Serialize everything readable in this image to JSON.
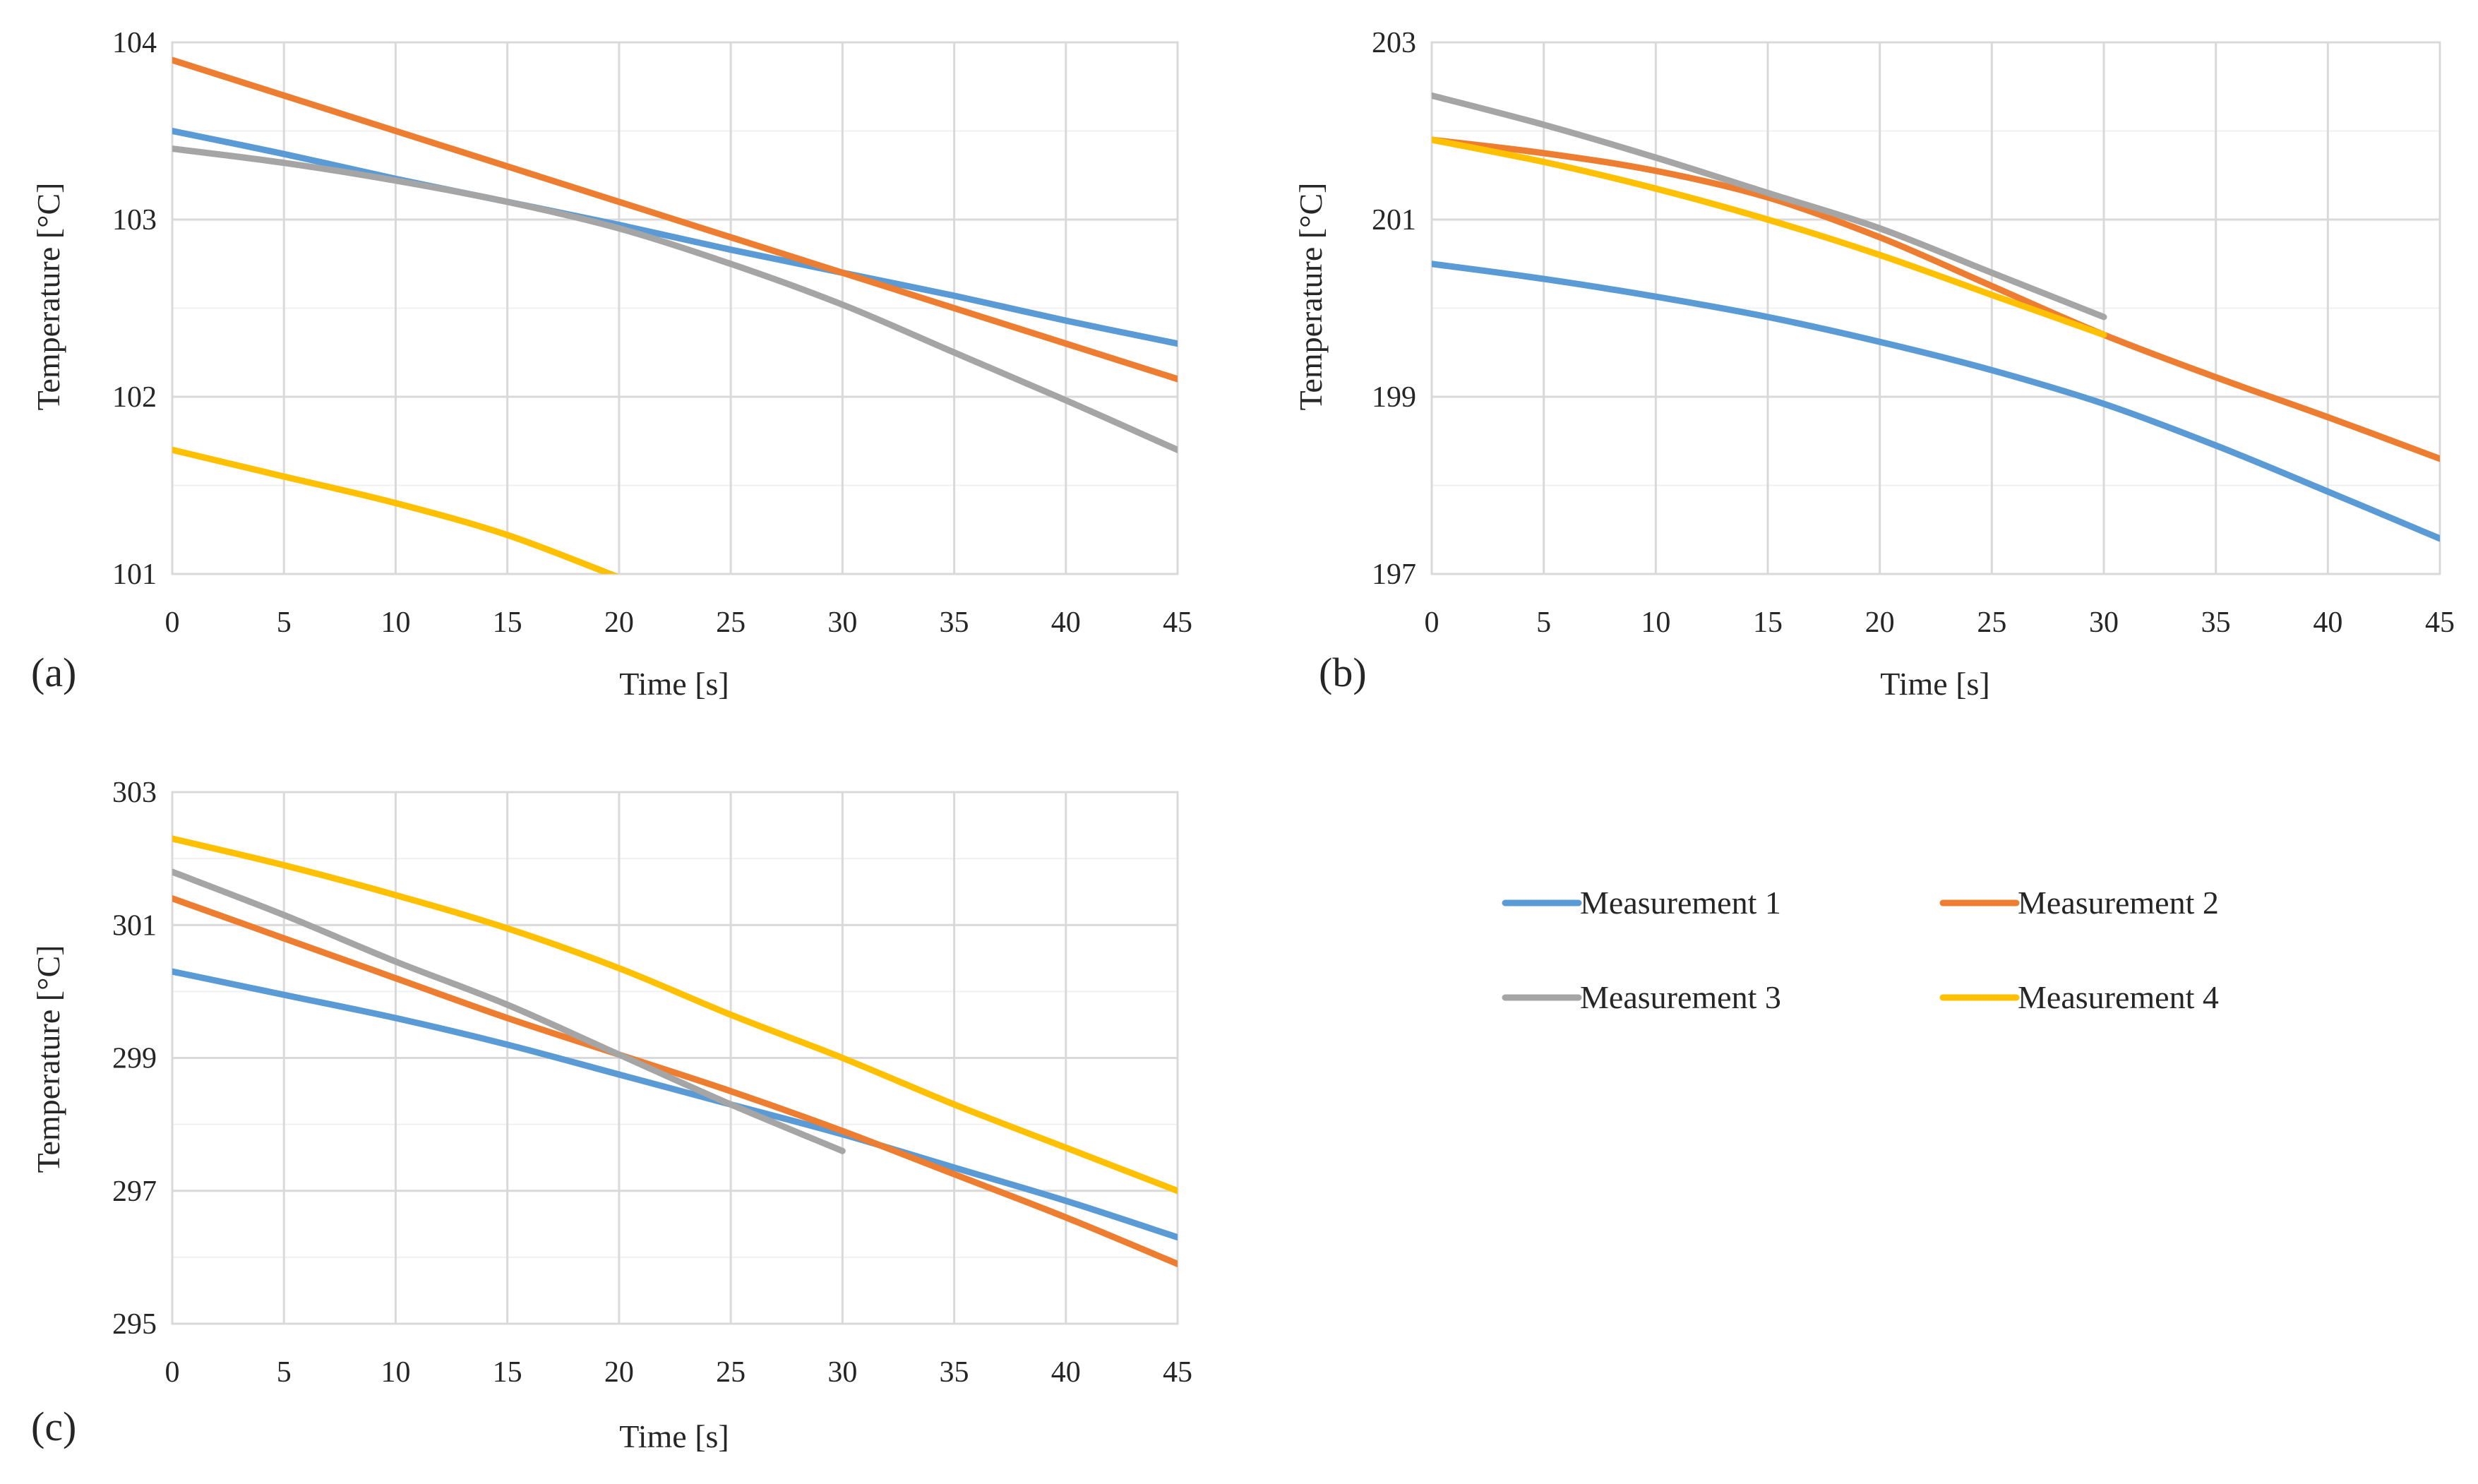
{
  "colors": {
    "Measurement 1": "#5b9bd5",
    "Measurement 2": "#ed7d31",
    "Measurement 3": "#a5a5a5",
    "Measurement 4": "#ffc000"
  },
  "legend": {
    "items": [
      "Measurement 1",
      "Measurement 2",
      "Measurement 3",
      "Measurement 4"
    ]
  },
  "chart_data": [
    {
      "type": "line",
      "panel_label": "(a)",
      "xlabel": "Time [s]",
      "ylabel": "Temperature [°C]",
      "xlim": [
        0,
        45
      ],
      "ylim": [
        101,
        104
      ],
      "xticks": [
        0,
        5,
        10,
        15,
        20,
        25,
        30,
        35,
        40,
        45
      ],
      "yticks": [
        101,
        102,
        103,
        104
      ],
      "grid": true,
      "series": [
        {
          "name": "Measurement 1",
          "x": [
            0,
            5,
            10,
            15,
            20,
            25,
            30,
            35,
            40,
            45
          ],
          "y": [
            103.5,
            103.37,
            103.23,
            103.1,
            102.97,
            102.83,
            102.7,
            102.57,
            102.43,
            102.3
          ]
        },
        {
          "name": "Measurement 2",
          "x": [
            0,
            5,
            10,
            15,
            20,
            25,
            30,
            35,
            40,
            45
          ],
          "y": [
            103.9,
            103.7,
            103.5,
            103.3,
            103.1,
            102.9,
            102.7,
            102.5,
            102.3,
            102.1
          ]
        },
        {
          "name": "Measurement 3",
          "x": [
            0,
            5,
            10,
            15,
            20,
            25,
            30,
            35,
            40,
            45
          ],
          "y": [
            103.4,
            103.32,
            103.22,
            103.1,
            102.95,
            102.75,
            102.52,
            102.25,
            101.98,
            101.7
          ]
        },
        {
          "name": "Measurement 4",
          "x": [
            0,
            5,
            10,
            15,
            20
          ],
          "y": [
            101.7,
            101.55,
            101.4,
            101.22,
            100.98
          ]
        }
      ]
    },
    {
      "type": "line",
      "panel_label": "(b)",
      "xlabel": "Time [s]",
      "ylabel": "Temperature [°C]",
      "xlim": [
        0,
        45
      ],
      "ylim": [
        197,
        203
      ],
      "xticks": [
        0,
        5,
        10,
        15,
        20,
        25,
        30,
        35,
        40,
        45
      ],
      "yticks": [
        197,
        199,
        201,
        203
      ],
      "grid": true,
      "series": [
        {
          "name": "Measurement 1",
          "x": [
            0,
            5,
            10,
            15,
            20,
            25,
            30,
            35,
            40,
            45
          ],
          "y": [
            200.5,
            200.33,
            200.13,
            199.9,
            199.62,
            199.3,
            198.92,
            198.45,
            197.93,
            197.4
          ]
        },
        {
          "name": "Measurement 2",
          "x": [
            0,
            5,
            10,
            15,
            20,
            25,
            30,
            35,
            40,
            45
          ],
          "y": [
            201.9,
            201.75,
            201.55,
            201.25,
            200.8,
            200.25,
            199.7,
            199.22,
            198.77,
            198.3
          ]
        },
        {
          "name": "Measurement 3",
          "x": [
            0,
            5,
            10,
            15,
            20,
            25,
            30
          ],
          "y": [
            202.4,
            202.07,
            201.7,
            201.3,
            200.9,
            200.4,
            199.9
          ]
        },
        {
          "name": "Measurement 4",
          "x": [
            0,
            5,
            10,
            15,
            20,
            25,
            30
          ],
          "y": [
            201.9,
            201.65,
            201.35,
            201.0,
            200.6,
            200.15,
            199.7
          ]
        }
      ]
    },
    {
      "type": "line",
      "panel_label": "(c)",
      "xlabel": "Time [s]",
      "ylabel": "Temperature [°C]",
      "xlim": [
        0,
        45
      ],
      "ylim": [
        295,
        303
      ],
      "xticks": [
        0,
        5,
        10,
        15,
        20,
        25,
        30,
        35,
        40,
        45
      ],
      "yticks": [
        295,
        297,
        299,
        301,
        303
      ],
      "grid": true,
      "series": [
        {
          "name": "Measurement 1",
          "x": [
            0,
            5,
            10,
            15,
            20,
            25,
            30,
            35,
            40,
            45
          ],
          "y": [
            300.3,
            299.95,
            299.6,
            299.2,
            298.75,
            298.3,
            297.85,
            297.35,
            296.85,
            296.3
          ]
        },
        {
          "name": "Measurement 2",
          "x": [
            0,
            5,
            10,
            15,
            20,
            25,
            30,
            35,
            40,
            45
          ],
          "y": [
            301.4,
            300.8,
            300.2,
            299.6,
            299.05,
            298.5,
            297.9,
            297.25,
            296.6,
            295.9
          ]
        },
        {
          "name": "Measurement 3",
          "x": [
            0,
            5,
            10,
            15,
            20,
            25,
            30
          ],
          "y": [
            301.8,
            301.15,
            300.45,
            299.8,
            299.05,
            298.3,
            297.6
          ]
        },
        {
          "name": "Measurement 4",
          "x": [
            0,
            5,
            10,
            15,
            20,
            25,
            30,
            35,
            40,
            45
          ],
          "y": [
            302.3,
            301.9,
            301.45,
            300.95,
            300.35,
            299.65,
            299.0,
            298.3,
            297.65,
            297.0
          ]
        }
      ]
    }
  ]
}
